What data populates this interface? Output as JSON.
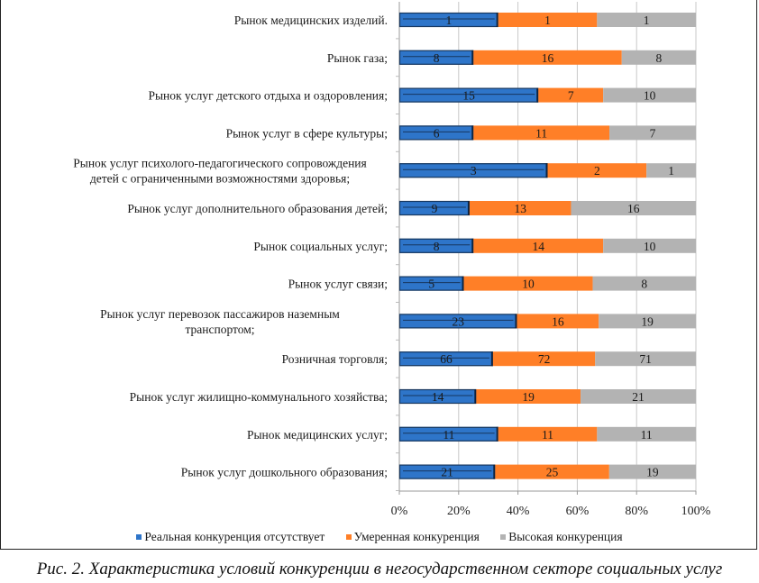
{
  "chart_data": {
    "type": "bar",
    "orientation": "horizontal",
    "stacked": "percent",
    "title": "",
    "xlabel": "",
    "ylabel": "",
    "xlim": [
      0,
      100
    ],
    "x_ticks": [
      "0%",
      "20%",
      "40%",
      "60%",
      "80%",
      "100%"
    ],
    "grid": true,
    "legend_position": "bottom",
    "categories": [
      "Рынок медицинских изделий.",
      "Рынок газа;",
      "Рынок услуг детского отдыха и оздоровления;",
      "Рынок услуг в сфере культуры;",
      "Рынок услуг психолого-педагогического сопровождения детей с ограниченными возможностями здоровья;",
      "Рынок услуг дополнительного образования детей;",
      "Рынок социальных услуг;",
      "Рынок услуг связи;",
      "Рынок услуг перевозок пассажиров наземным транспортом;",
      "Розничная торговля;",
      "Рынок услуг жилищно-коммунального хозяйства;",
      "Рынок медицинских услуг;",
      "Рынок услуг дошкольного образования;"
    ],
    "category_lines": [
      [
        "Рынок медицинских изделий."
      ],
      [
        "Рынок газа;"
      ],
      [
        "Рынок услуг детского отдыха и оздоровления;"
      ],
      [
        "Рынок услуг в сфере культуры;"
      ],
      [
        "Рынок услуг психолого-педагогического сопровождения",
        "детей с ограниченными возможностями здоровья;"
      ],
      [
        "Рынок услуг дополнительного образования детей;"
      ],
      [
        "Рынок социальных услуг;"
      ],
      [
        "Рынок услуг связи;"
      ],
      [
        "Рынок услуг перевозок пассажиров наземным",
        "транспортом;"
      ],
      [
        "Розничная торговля;"
      ],
      [
        "Рынок услуг жилищно-коммунального хозяйства;"
      ],
      [
        "Рынок медицинских услуг;"
      ],
      [
        "Рынок услуг дошкольного образования;"
      ]
    ],
    "series": [
      {
        "name": "Реальная конкуренция отсутствует",
        "color": "#2e75c9",
        "values": [
          1,
          8,
          15,
          6,
          3,
          9,
          8,
          5,
          23,
          66,
          14,
          11,
          21
        ]
      },
      {
        "name": "Умеренная конкуренция",
        "color": "#ff7f27",
        "values": [
          1,
          16,
          7,
          11,
          2,
          13,
          14,
          10,
          16,
          72,
          19,
          11,
          25
        ]
      },
      {
        "name": "Высокая конкуренция",
        "color": "#b3b3b3",
        "values": [
          1,
          8,
          10,
          7,
          1,
          16,
          10,
          8,
          19,
          71,
          21,
          11,
          19
        ]
      }
    ]
  },
  "legend": {
    "items": [
      {
        "label": "Реальная конкуренция отсутствует",
        "color": "#2e75c9"
      },
      {
        "label": "Умеренная конкуренция",
        "color": "#ff7f27"
      },
      {
        "label": "Высокая конкуренция",
        "color": "#b3b3b3"
      }
    ]
  },
  "caption": "Рис. 2. Характеристика условий конкуренции в негосударственном секторе социальных услуг"
}
